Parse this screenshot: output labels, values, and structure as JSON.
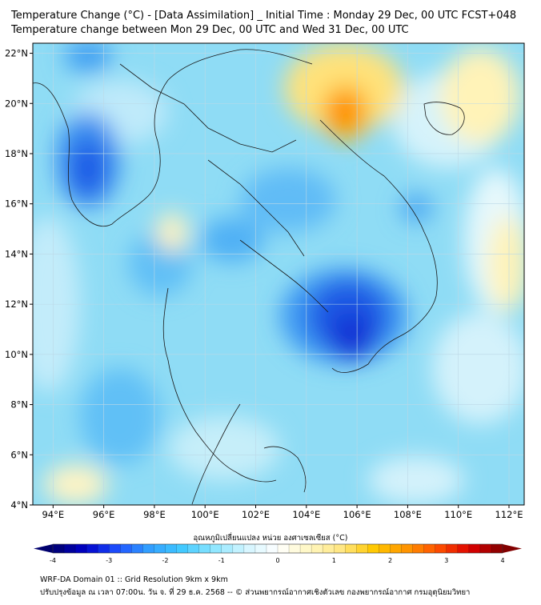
{
  "header": {
    "title_line1": "Temperature Change (°C) - [Data Assimilation] _ Initial Time : Monday 29 Dec, 00 UTC FCST+048",
    "title_line2": "Temperature change between Mon 29 Dec, 00 UTC and Wed 31 Dec, 00 UTC"
  },
  "map": {
    "lat_labels": [
      "22°N",
      "20°N",
      "18°N",
      "16°N",
      "14°N",
      "12°N",
      "10°N",
      "8°N",
      "6°N",
      "4°N"
    ],
    "lat_values": [
      22,
      20,
      18,
      16,
      14,
      12,
      10,
      8,
      6,
      4
    ],
    "lon_labels": [
      "94°E",
      "96°E",
      "98°E",
      "100°E",
      "102°E",
      "104°E",
      "106°E",
      "108°E",
      "110°E",
      "112°E"
    ],
    "lon_values": [
      94,
      96,
      98,
      100,
      102,
      104,
      106,
      108,
      110,
      112
    ],
    "extent": {
      "lon": [
        93.2,
        112.6
      ],
      "lat": [
        4,
        22.4
      ]
    },
    "grid": true
  },
  "colorbar": {
    "label": "อุณหภูมิเปลี่ยนแปลง หน่วย องศาเซลเซียส (°C)",
    "tick_labels": [
      "-4",
      "-3",
      "-2",
      "-1",
      "0",
      "1",
      "2",
      "3",
      "4"
    ],
    "tick_values": [
      -4,
      -3,
      -2,
      -1,
      0,
      1,
      2,
      3,
      4
    ],
    "colors": [
      "#00006e",
      "#0000c8",
      "#1e50ff",
      "#32a0ff",
      "#40c8ff",
      "#8ce6ff",
      "#d2f5ff",
      "#ffffff",
      "#fff7c0",
      "#ffe680",
      "#ffc800",
      "#ff9600",
      "#ff5000",
      "#dc0000",
      "#820000"
    ]
  },
  "footer": {
    "line1": "WRF-DA Domain 01 :: Grid Resolution 9km x 9km",
    "line2": "ปรับปรุงข้อมูล ณ เวลา 07:00น. วัน จ. ที่ 29 ธ.ค. 2568 -- © ส่วนพยากรณ์อากาศเชิงตัวเลข กองพยากรณ์อากาศ กรมอุตุนิยมวิทยา"
  }
}
